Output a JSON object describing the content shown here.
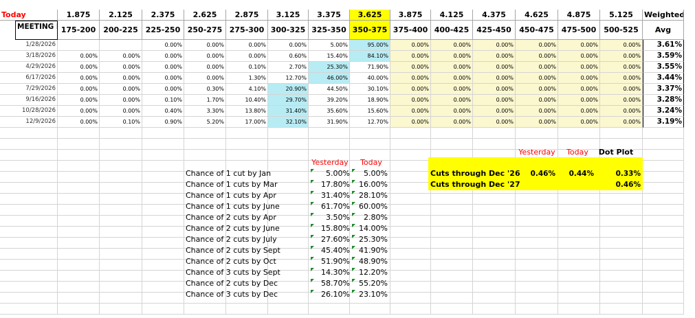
{
  "top_header": {
    "today_label": "Today",
    "rates": [
      "1.875",
      "2.125",
      "2.375",
      "2.625",
      "2.875",
      "3.125",
      "3.375",
      "3.625",
      "3.875",
      "4.125",
      "4.375",
      "4.625",
      "4.875",
      "5.125"
    ],
    "weighted_label": "Weighted"
  },
  "sub_header": {
    "meeting_label": "MEETING DATE",
    "ranges": [
      "175-200",
      "200-225",
      "225-250",
      "250-275",
      "275-300",
      "300-325",
      "325-350",
      "350-375",
      "375-400",
      "400-425",
      "425-450",
      "450-475",
      "475-500",
      "500-525"
    ],
    "avg_label": "Avg"
  },
  "rows": [
    {
      "date": "1/28/2026",
      "values": [
        "",
        "",
        "0.00%",
        "0.00%",
        "0.00%",
        "0.00%",
        "5.00%",
        "95.00%",
        "0.00%",
        "0.00%",
        "0.00%",
        "0.00%",
        "0.00%",
        "0.00%"
      ],
      "avg": "3.61%"
    },
    {
      "date": "3/18/2026",
      "values": [
        "0.00%",
        "0.00%",
        "0.00%",
        "0.00%",
        "0.00%",
        "0.60%",
        "15.40%",
        "84.10%",
        "0.00%",
        "0.00%",
        "0.00%",
        "0.00%",
        "0.00%",
        "0.00%"
      ],
      "avg": "3.59%"
    },
    {
      "date": "4/29/2026",
      "values": [
        "0.00%",
        "0.00%",
        "0.00%",
        "0.00%",
        "0.10%",
        "2.70%",
        "25.30%",
        "71.90%",
        "0.00%",
        "0.00%",
        "0.00%",
        "0.00%",
        "0.00%",
        "0.00%"
      ],
      "avg": "3.55%"
    },
    {
      "date": "6/17/2026",
      "values": [
        "0.00%",
        "0.00%",
        "0.00%",
        "0.00%",
        "1.30%",
        "12.70%",
        "46.00%",
        "40.00%",
        "0.00%",
        "0.00%",
        "0.00%",
        "0.00%",
        "0.00%",
        "0.00%"
      ],
      "avg": "3.44%"
    },
    {
      "date": "7/29/2026",
      "values": [
        "0.00%",
        "0.00%",
        "0.00%",
        "0.30%",
        "4.10%",
        "20.90%",
        "44.50%",
        "30.10%",
        "0.00%",
        "0.00%",
        "0.00%",
        "0.00%",
        "0.00%",
        "0.00%"
      ],
      "avg": "3.37%"
    },
    {
      "date": "9/16/2026",
      "values": [
        "0.00%",
        "0.00%",
        "0.10%",
        "1.70%",
        "10.40%",
        "29.70%",
        "39.20%",
        "18.90%",
        "0.00%",
        "0.00%",
        "0.00%",
        "0.00%",
        "0.00%",
        "0.00%"
      ],
      "avg": "3.28%"
    },
    {
      "date": "10/28/2026",
      "values": [
        "0.00%",
        "0.00%",
        "0.40%",
        "3.30%",
        "13.80%",
        "31.40%",
        "35.60%",
        "15.60%",
        "0.00%",
        "0.00%",
        "0.00%",
        "0.00%",
        "0.00%",
        "0.00%"
      ],
      "avg": "3.24%"
    },
    {
      "date": "12/9/2026",
      "values": [
        "0.00%",
        "0.10%",
        "0.90%",
        "5.20%",
        "17.00%",
        "32.10%",
        "31.90%",
        "12.70%",
        "0.00%",
        "0.00%",
        "0.00%",
        "0.00%",
        "0.00%",
        "0.00%"
      ],
      "avg": "3.19%"
    }
  ],
  "chances": {
    "yesterday_label": "Yesterday",
    "today_label": "Today",
    "items": [
      {
        "label": "Chance of 1 cut by Jan",
        "yesterday": "5.00%",
        "today": "5.00%"
      },
      {
        "label": "Chance of 1 cuts by Mar",
        "yesterday": "17.80%",
        "today": "16.00%"
      },
      {
        "label": "Chance of 1 cuts by Apr",
        "yesterday": "31.40%",
        "today": "28.10%"
      },
      {
        "label": "Chance of 1 cuts by June",
        "yesterday": "61.70%",
        "today": "60.00%"
      },
      {
        "label": "Chance of 2 cuts by Apr",
        "yesterday": "3.50%",
        "today": "2.80%"
      },
      {
        "label": "Chance of 2 cuts by June",
        "yesterday": "15.80%",
        "today": "14.00%"
      },
      {
        "label": "Chance of 2 cuts by July",
        "yesterday": "27.60%",
        "today": "25.30%"
      },
      {
        "label": "Chance of 2 cuts by Sept",
        "yesterday": "45.40%",
        "today": "41.90%"
      },
      {
        "label": "Chance of 2 cuts by Oct",
        "yesterday": "51.90%",
        "today": "48.90%"
      },
      {
        "label": "Chance of 3 cuts by Sept",
        "yesterday": "14.30%",
        "today": "12.20%"
      },
      {
        "label": "Chance of 2 cuts by Dec",
        "yesterday": "58.70%",
        "today": "55.20%"
      },
      {
        "label": "Chance of 3 cuts by Dec",
        "yesterday": "26.10%",
        "today": "23.10%"
      }
    ]
  },
  "cuts": {
    "yesterday_label": "Yesterday",
    "today_label": "Today",
    "dotplot_label": "Dot Plot",
    "items": [
      {
        "label": "Cuts through Dec '26",
        "yesterday": "0.46%",
        "today": "0.44%",
        "dotplot": "0.33%"
      },
      {
        "label": "Cuts through Dec '27",
        "yesterday": "",
        "today": "",
        "dotplot": "0.46%"
      }
    ]
  },
  "colors": {
    "highlight_yellow": "#ffff00",
    "pale_yellow": "#fbf7cf",
    "cyan": "#b8ecf4",
    "red_label": "#ff0000",
    "comment_marker": "#1e8a2a"
  }
}
